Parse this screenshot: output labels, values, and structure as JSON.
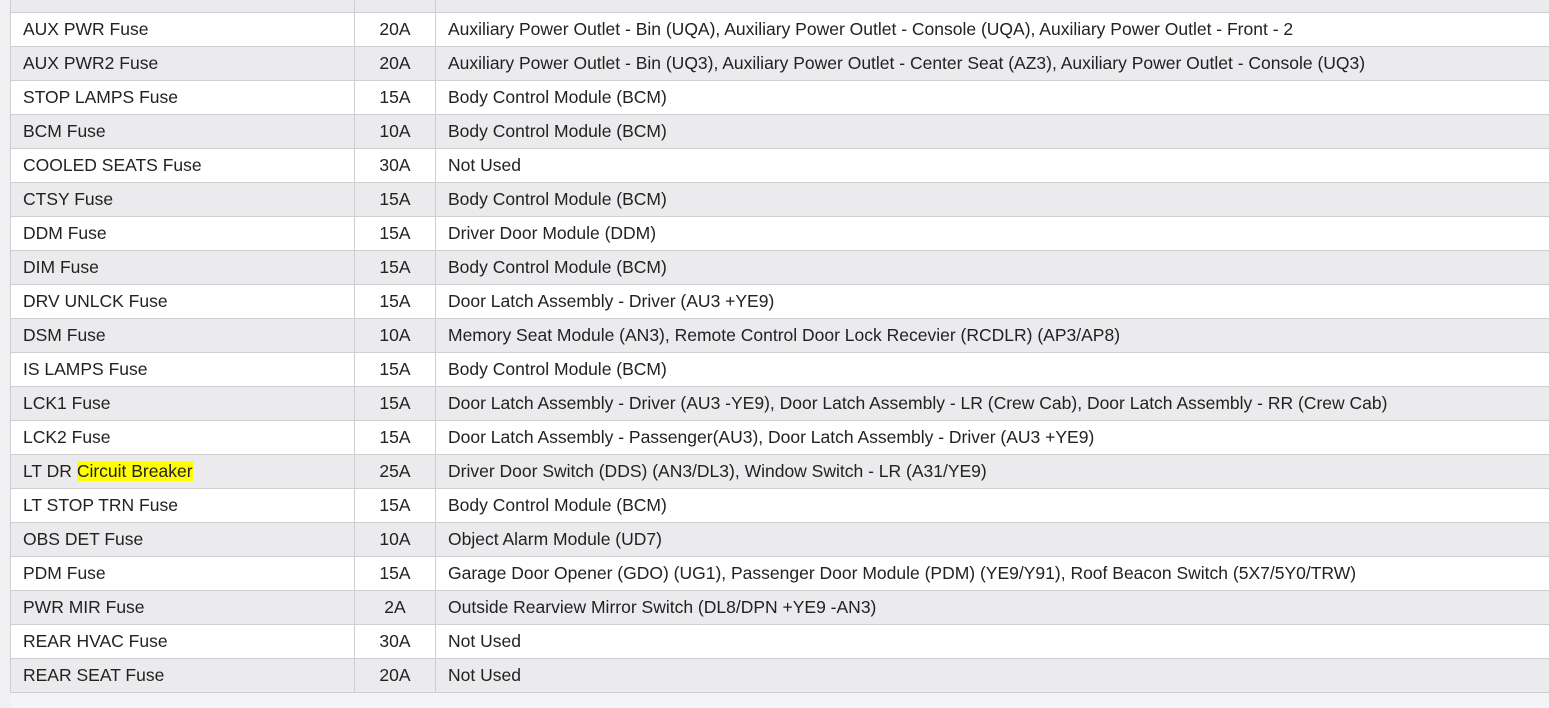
{
  "highlight_color": "#ffff00",
  "rows": [
    {
      "name": "AUX PWR Fuse",
      "rating": "20A",
      "description": "Auxiliary Power Outlet - Bin (UQA), Auxiliary Power Outlet - Console (UQA), Auxiliary Power Outlet - Front - 2"
    },
    {
      "name": "AUX PWR2 Fuse",
      "rating": "20A",
      "description": "Auxiliary Power Outlet - Bin (UQ3), Auxiliary Power Outlet - Center Seat (AZ3), Auxiliary Power Outlet - Console (UQ3)"
    },
    {
      "name": "STOP LAMPS Fuse",
      "rating": "15A",
      "description": "Body Control Module (BCM)"
    },
    {
      "name": "BCM Fuse",
      "rating": "10A",
      "description": "Body Control Module (BCM)"
    },
    {
      "name": "COOLED SEATS Fuse",
      "rating": "30A",
      "description": "Not Used"
    },
    {
      "name": "CTSY Fuse",
      "rating": "15A",
      "description": "Body Control Module (BCM)"
    },
    {
      "name": "DDM Fuse",
      "rating": "15A",
      "description": "Driver Door Module (DDM)"
    },
    {
      "name": "DIM Fuse",
      "rating": "15A",
      "description": "Body Control Module (BCM)"
    },
    {
      "name": "DRV UNLCK Fuse",
      "rating": "15A",
      "description": "Door Latch Assembly - Driver (AU3 +YE9)"
    },
    {
      "name": "DSM Fuse",
      "rating": "10A",
      "description": "Memory Seat Module (AN3), Remote Control Door Lock Recevier (RCDLR) (AP3/AP8)"
    },
    {
      "name": "IS LAMPS Fuse",
      "rating": "15A",
      "description": "Body Control Module (BCM)"
    },
    {
      "name": "LCK1 Fuse",
      "rating": "15A",
      "description": "Door Latch Assembly - Driver (AU3 -YE9), Door Latch Assembly - LR (Crew Cab), Door Latch Assembly - RR (Crew Cab)"
    },
    {
      "name": "LCK2 Fuse",
      "rating": "15A",
      "description": "Door Latch Assembly - Passenger(AU3), Door Latch Assembly - Driver (AU3 +YE9)"
    },
    {
      "name": "LT DR ",
      "name_highlight": "Circuit Breaker",
      "rating": "25A",
      "description": "Driver Door Switch (DDS) (AN3/DL3), Window Switch - LR (A31/YE9)"
    },
    {
      "name": "LT STOP TRN Fuse",
      "rating": "15A",
      "description": "Body Control Module (BCM)"
    },
    {
      "name": "OBS DET Fuse",
      "rating": "10A",
      "description": "Object Alarm Module (UD7)"
    },
    {
      "name": "PDM Fuse",
      "rating": "15A",
      "description": "Garage Door Opener (GDO) (UG1), Passenger Door Module (PDM) (YE9/Y91), Roof Beacon Switch (5X7/5Y0/TRW)"
    },
    {
      "name": "PWR MIR Fuse",
      "rating": "2A",
      "description": "Outside Rearview Mirror Switch (DL8/DPN +YE9 -AN3)"
    },
    {
      "name": "REAR HVAC Fuse",
      "rating": "30A",
      "description": "Not Used"
    },
    {
      "name": "REAR SEAT Fuse",
      "rating": "20A",
      "description": "Not Used"
    }
  ]
}
